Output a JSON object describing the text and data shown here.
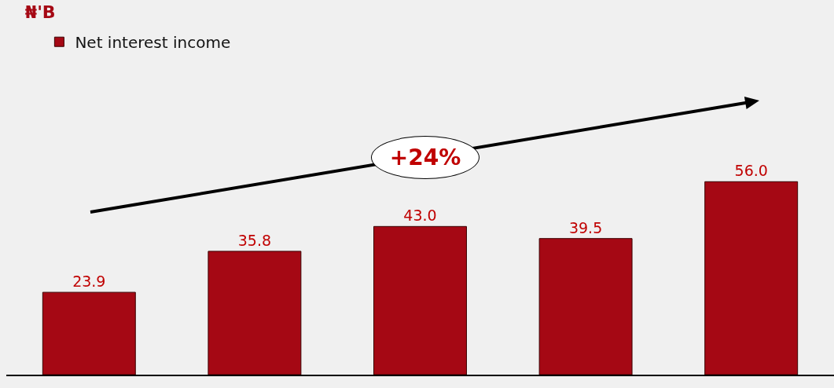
{
  "chart_data": {
    "type": "bar",
    "title": "₦'B",
    "categories": [
      null,
      null,
      null,
      null,
      null
    ],
    "series": [
      {
        "name": "Net interest income",
        "color": "#a50814",
        "values": [
          23.9,
          35.8,
          43.0,
          39.5,
          56.0
        ],
        "value_labels": [
          "23.9",
          "35.8",
          "43.0",
          "39.5",
          "56.0"
        ]
      }
    ],
    "legend": "top left",
    "annotations": [
      "+24%"
    ]
  }
}
